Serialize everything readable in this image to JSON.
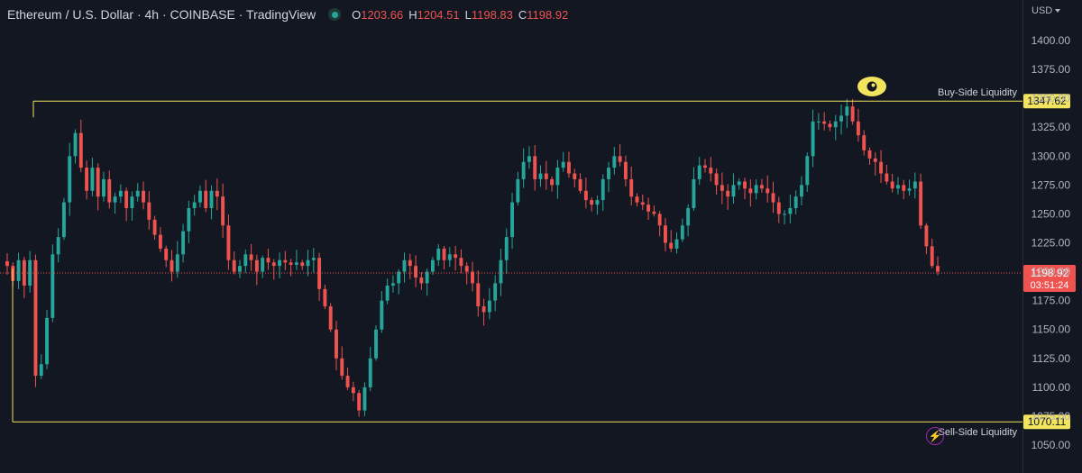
{
  "header": {
    "symbol": "Ethereum / U.S. Dollar · 4h · COINBASE · TradingView",
    "open_label": "O",
    "open": "1203.66",
    "high_label": "H",
    "high": "1204.51",
    "low_label": "L",
    "low": "1198.83",
    "close_label": "C",
    "close": "1198.92"
  },
  "axis": {
    "currency": "USD"
  },
  "chart_data": {
    "type": "candlestick",
    "timeframe": "4h",
    "ylim": [
      1050,
      1410
    ],
    "yticks": [
      1400,
      1375,
      1350,
      1325,
      1300,
      1275,
      1250,
      1225,
      1200,
      1175,
      1150,
      1125,
      1100,
      1075,
      1050
    ],
    "ytick_labels": [
      "1400.00",
      "1375.00",
      "1350.00",
      "1325.00",
      "1300.00",
      "1275.00",
      "1250.00",
      "1225.00",
      "1200.00",
      "1175.00",
      "1150.00",
      "1125.00",
      "1100.00",
      "1075.00",
      "1050.00"
    ],
    "grid": false,
    "current_price": {
      "value": 1198.92,
      "label": "1198.92",
      "countdown": "03:51:24",
      "color": "#ef5350"
    },
    "levels": [
      {
        "name": "Buy-Side Liquidity",
        "value": 1347.62,
        "label": "1347.62",
        "color": "#f2e45c"
      },
      {
        "name": "Sell-Side Liquidity",
        "value": 1070.11,
        "label": "1070.11",
        "color": "#f2e45c"
      }
    ],
    "colors": {
      "up": "#26a69a",
      "down": "#ef5350",
      "background": "#131722",
      "text": "#d1d4dc"
    },
    "candles_close_path": [
      1205,
      1192,
      1210,
      1188,
      1210,
      1110,
      1120,
      1160,
      1215,
      1230,
      1260,
      1300,
      1320,
      1290,
      1270,
      1290,
      1265,
      1280,
      1260,
      1265,
      1270,
      1255,
      1265,
      1270,
      1260,
      1245,
      1232,
      1220,
      1210,
      1200,
      1215,
      1235,
      1255,
      1260,
      1270,
      1255,
      1270,
      1265,
      1240,
      1210,
      1200,
      1205,
      1215,
      1210,
      1200,
      1212,
      1208,
      1205,
      1210,
      1208,
      1206,
      1208,
      1205,
      1210,
      1212,
      1185,
      1170,
      1150,
      1125,
      1110,
      1100,
      1095,
      1080,
      1100,
      1125,
      1150,
      1175,
      1188,
      1190,
      1200,
      1210,
      1205,
      1195,
      1190,
      1200,
      1210,
      1220,
      1210,
      1215,
      1212,
      1205,
      1200,
      1190,
      1170,
      1165,
      1175,
      1190,
      1210,
      1230,
      1260,
      1280,
      1295,
      1300,
      1280,
      1285,
      1280,
      1275,
      1290,
      1295,
      1285,
      1280,
      1270,
      1262,
      1258,
      1262,
      1280,
      1290,
      1300,
      1295,
      1280,
      1265,
      1260,
      1258,
      1252,
      1250,
      1240,
      1225,
      1220,
      1228,
      1240,
      1255,
      1280,
      1292,
      1290,
      1285,
      1275,
      1270,
      1265,
      1275,
      1278,
      1272,
      1268,
      1275,
      1272,
      1268,
      1260,
      1250,
      1250,
      1255,
      1265,
      1275,
      1300,
      1330,
      1330,
      1328,
      1325,
      1330,
      1335,
      1343,
      1330,
      1318,
      1305,
      1298,
      1295,
      1285,
      1278,
      1272,
      1275,
      1270,
      1272,
      1278,
      1240,
      1222,
      1205,
      1200
    ]
  },
  "footer": {
    "icon": "lightning-icon"
  }
}
